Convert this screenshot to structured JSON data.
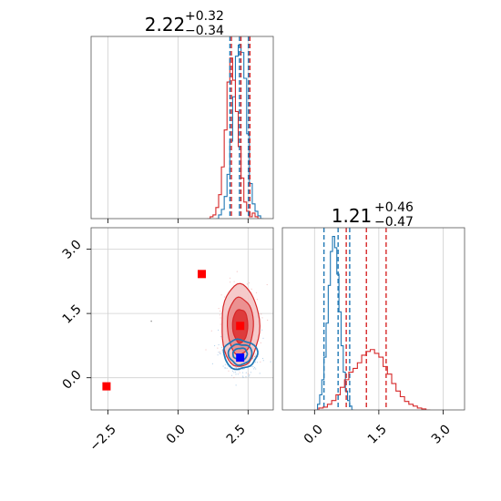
{
  "chart_data": [
    {
      "type": "histogram",
      "panel": "top-left marginal",
      "title": {
        "main": "2.22",
        "sup": "+0.32",
        "sub": "−0.34"
      },
      "xlim": [
        -3.1,
        3.4
      ],
      "x_ticks": [
        -2.5,
        0.0,
        2.5
      ],
      "show_tick_labels": false,
      "grid": true,
      "series": [
        {
          "name": "",
          "color": "#1f77b4",
          "bin_start": 1.35,
          "bin_width": 0.1,
          "counts": [
            0,
            0.2,
            0.5,
            1.2,
            2.4,
            4.2,
            6.6,
            8.8,
            9.4,
            9.0,
            7.6,
            4.6,
            1.9,
            0.8,
            0.4,
            0.15,
            0
          ],
          "quantiles": [
            1.88,
            2.22,
            2.54
          ]
        },
        {
          "name": "",
          "color": "#d62728",
          "bin_start": 1.05,
          "bin_width": 0.1,
          "counts": [
            0,
            0.1,
            0.2,
            0.6,
            1.3,
            2.8,
            4.8,
            7.4,
            8.7,
            7.5,
            5.8,
            3.9,
            2.2,
            0.9,
            0.4,
            0.1,
            0.3,
            0.1,
            0
          ],
          "quantiles": [
            1.88,
            2.22,
            2.54
          ]
        }
      ]
    },
    {
      "type": "contour-scatter",
      "panel": "bottom-left joint",
      "xlim": [
        -3.1,
        3.4
      ],
      "ylim": [
        -0.75,
        3.5
      ],
      "x_ticks": [
        -2.5,
        0.0,
        2.5
      ],
      "y_ticks": [
        0.0,
        1.5,
        3.0
      ],
      "x_tick_labels": [
        "−2.5",
        "0.0",
        "2.5"
      ],
      "y_tick_labels": [
        "0.0",
        "1.5",
        "3.0"
      ],
      "grid": true,
      "red_distribution": {
        "center": [
          2.22,
          1.21
        ],
        "sigma": [
          0.32,
          0.46
        ],
        "color": "#d62728"
      },
      "blue_distribution": {
        "center": [
          2.22,
          0.55
        ],
        "sigma": [
          0.3,
          0.17
        ],
        "color": "#1f77b4"
      },
      "outlier_point": [
        -0.95,
        1.32
      ],
      "markers": [
        {
          "x": 0.85,
          "y": 2.42,
          "color": "#ff0000"
        },
        {
          "x": -2.55,
          "y": -0.2,
          "color": "#ff0000"
        },
        {
          "x": 2.22,
          "y": 1.21,
          "color": "#ff0000"
        },
        {
          "x": 2.22,
          "y": 0.47,
          "color": "#0000ff"
        }
      ]
    },
    {
      "type": "histogram",
      "panel": "bottom-right marginal",
      "title": {
        "main": "1.21",
        "sup": "+0.46",
        "sub": "−0.47"
      },
      "xlim": [
        -0.75,
        3.5
      ],
      "x_ticks": [
        0.0,
        1.5,
        3.0
      ],
      "x_tick_labels": [
        "0.0",
        "1.5",
        "3.0"
      ],
      "grid": true,
      "series": [
        {
          "name": "",
          "color": "#1f77b4",
          "bin_start": 0.02,
          "bin_width": 0.05,
          "counts": [
            0,
            0.3,
            0.8,
            1.6,
            2.8,
            4.6,
            6.6,
            8.4,
            9.2,
            8.6,
            7.2,
            5.2,
            3.4,
            2.0,
            1.0,
            0.5,
            0.2,
            0
          ],
          "quantiles": [
            0.22,
            0.55,
            0.82
          ]
        },
        {
          "name": "",
          "color": "#d62728",
          "bin_start": 0.0,
          "bin_width": 0.1,
          "counts": [
            0,
            0.1,
            0.15,
            0.3,
            0.5,
            0.8,
            1.2,
            1.6,
            2.0,
            2.2,
            2.5,
            2.9,
            3.1,
            3.2,
            3.0,
            2.8,
            2.3,
            1.9,
            1.4,
            1.0,
            0.7,
            0.45,
            0.3,
            0.2,
            0.1,
            0.05,
            0
          ],
          "quantiles": [
            0.74,
            1.21,
            1.67
          ]
        }
      ]
    }
  ]
}
